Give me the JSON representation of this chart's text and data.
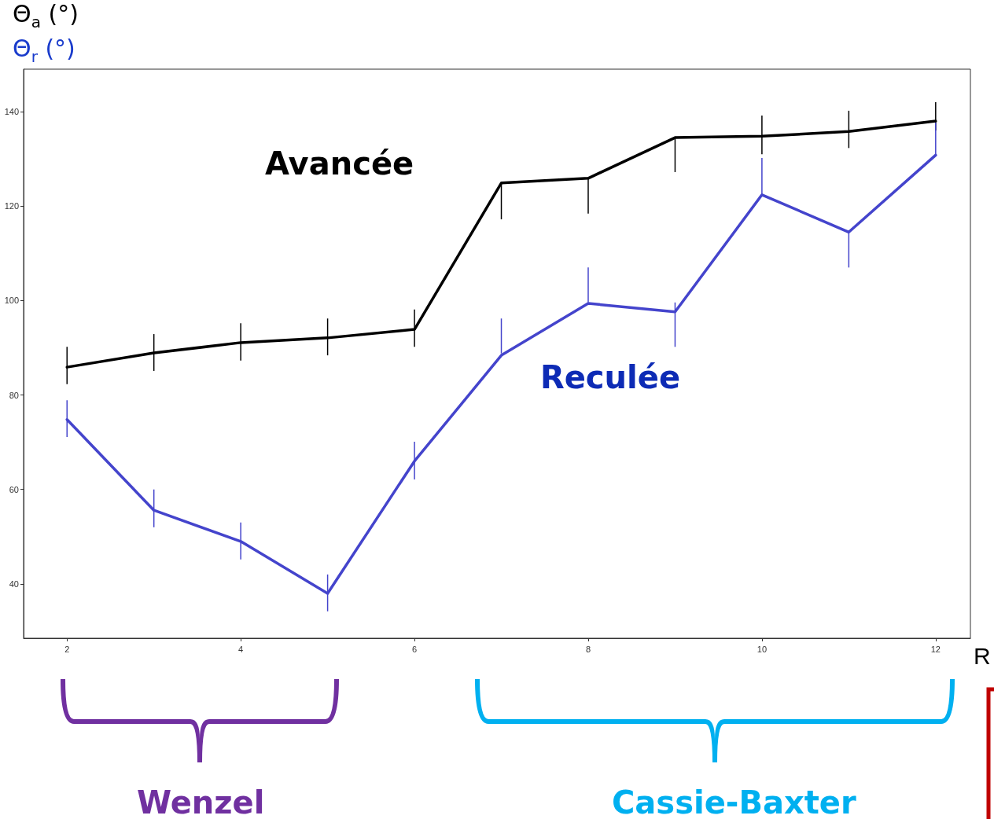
{
  "chart_data": {
    "type": "line",
    "ylabel": "Θ$_{a}$ (°)",
    "xlabel": "R",
    "x": [
      2,
      3,
      4,
      5,
      6,
      7,
      8,
      9,
      10,
      11,
      12
    ],
    "xlim": [
      1.5,
      12.4
    ],
    "xticks": [
      2,
      4,
      6,
      8,
      10,
      12
    ],
    "ylim": [
      28.5,
      149
    ],
    "yticks": [
      40,
      60,
      80,
      100,
      120,
      140
    ],
    "grid": false,
    "legend": false,
    "marker": "none",
    "line_style": "solid",
    "series": [
      {
        "name": "Avancée",
        "color": "#000000",
        "values": [
          85.9,
          88.9,
          91.1,
          92.1,
          93.9,
          124.9,
          125.9,
          134.5,
          134.8,
          135.8,
          138
        ],
        "errors": [
          [
            82.3,
            90.2
          ],
          [
            85.1,
            92.9
          ],
          [
            87.3,
            95.2
          ],
          [
            88.4,
            96.2
          ],
          [
            90.2,
            98.1
          ],
          [
            117.2,
            124.7
          ],
          [
            118.4,
            125.8
          ],
          [
            127.2,
            134.7
          ],
          [
            131,
            139.2
          ],
          [
            132.3,
            140.2
          ],
          [
            136,
            142
          ]
        ]
      },
      {
        "name": "Reculée",
        "color": "#4444cc",
        "values": [
          74.8,
          55.6,
          49,
          38,
          66,
          88.4,
          99.4,
          97.6,
          122.4,
          114.5,
          130.8
        ],
        "errors": [
          [
            71.1,
            78.9
          ],
          [
            52,
            60
          ],
          [
            45.2,
            53
          ],
          [
            34.2,
            42
          ],
          [
            62.1,
            70.1
          ],
          [
            88.8,
            96.2
          ],
          [
            99.6,
            107
          ],
          [
            90.2,
            99.6
          ],
          [
            122.4,
            130.2
          ],
          [
            107,
            114.9
          ],
          [
            130.7,
            137.7
          ]
        ]
      }
    ],
    "annotations": [
      "Θ$_{r}$ (°)",
      "Wenzel",
      "Cassie-Baxter"
    ]
  }
}
